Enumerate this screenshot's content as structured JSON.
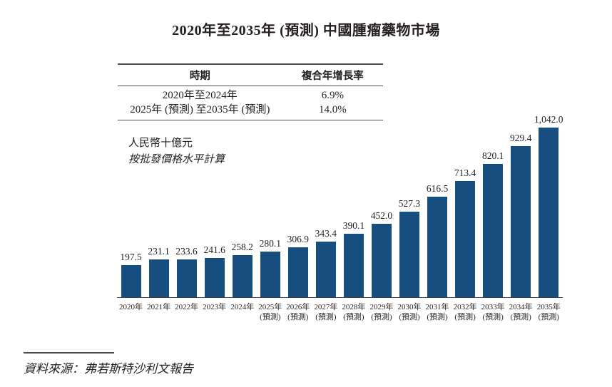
{
  "title": "2020年至2035年 (預測) 中國腫瘤藥物市場",
  "cagr_table": {
    "headers": [
      "時期",
      "複合年增長率"
    ],
    "rows": [
      [
        "2020年至2024年",
        "6.9%"
      ],
      [
        "2025年 (預測) 至2035年 (預測)",
        "14.0%"
      ]
    ]
  },
  "unit_label": "人民幣十億元",
  "basis_label": "按批發價格水平計算",
  "source": "資料來源：弗若斯特沙利文報告",
  "colors": {
    "bar": "#154e7f",
    "text": "#231f20",
    "table_rule": "#4c4c4e"
  },
  "chart_data": {
    "type": "bar",
    "title": "2020年至2035年 (預測) 中國腫瘤藥物市場",
    "ylabel": "人民幣十億元",
    "xlabel": "",
    "ylim": [
      0,
      1042
    ],
    "grid": false,
    "legend": "none",
    "categories": [
      "2020年",
      "2021年",
      "2022年",
      "2023年",
      "2024年",
      "2025年 (預測)",
      "2026年 (預測)",
      "2027年 (預測)",
      "2028年 (預測)",
      "2029年 (預測)",
      "2030年 (預測)",
      "2031年 (預測)",
      "2032年 (預測)",
      "2033年 (預測)",
      "2034年 (預測)",
      "2035年 (預測)"
    ],
    "values": [
      197.5,
      231.1,
      233.6,
      241.6,
      258.2,
      280.1,
      306.9,
      343.4,
      390.1,
      452.0,
      527.3,
      616.5,
      713.4,
      820.1,
      929.4,
      1042.0
    ],
    "value_labels": [
      "197.5",
      "231.1",
      "233.6",
      "241.6",
      "258.2",
      "280.1",
      "306.9",
      "343.4",
      "390.1",
      "452.0",
      "527.3",
      "616.5",
      "713.4",
      "820.1",
      "929.4",
      "1,042.0"
    ],
    "cagr_annotations": [
      {
        "period": "2020年至2024年",
        "cagr": "6.9%"
      },
      {
        "period": "2025年 (預測) 至2035年 (預測)",
        "cagr": "14.0%"
      }
    ]
  }
}
